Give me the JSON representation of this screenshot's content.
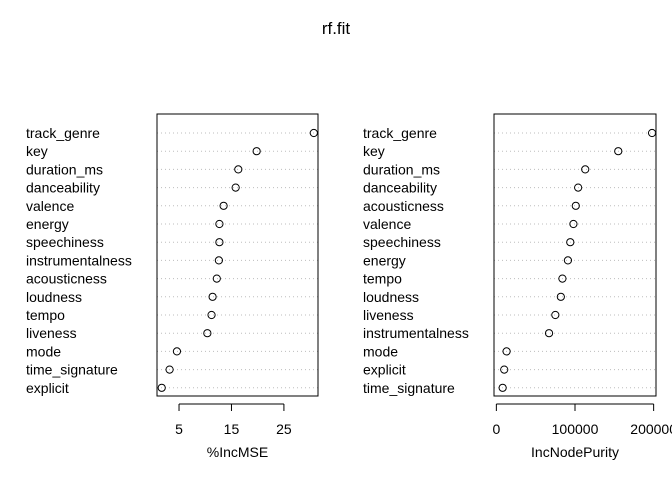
{
  "title": "rf.fit",
  "chart_data": [
    {
      "type": "scatter",
      "xlabel": "%IncMSE",
      "xlim": [
        0.8,
        31.5
      ],
      "xticks": [
        5,
        15,
        25
      ],
      "grid": "dotted horizontal guides",
      "categories": [
        "track_genre",
        "key",
        "duration_ms",
        "danceability",
        "valence",
        "energy",
        "speechiness",
        "instrumentalness",
        "acousticness",
        "loudness",
        "tempo",
        "liveness",
        "mode",
        "time_signature",
        "explicit"
      ],
      "values": [
        30.7,
        19.8,
        16.3,
        15.8,
        13.5,
        12.7,
        12.7,
        12.6,
        12.2,
        11.4,
        11.2,
        10.4,
        4.6,
        3.2,
        1.7
      ]
    },
    {
      "type": "scatter",
      "xlabel": "IncNodePurity",
      "xlim": [
        -3000,
        203000
      ],
      "xticks": [
        0,
        100000,
        200000
      ],
      "grid": "dotted horizontal guides",
      "categories": [
        "track_genre",
        "key",
        "duration_ms",
        "danceability",
        "acousticness",
        "valence",
        "speechiness",
        "energy",
        "tempo",
        "loudness",
        "liveness",
        "instrumentalness",
        "mode",
        "explicit",
        "time_signature"
      ],
      "values": [
        198000,
        155000,
        113000,
        104000,
        101000,
        98000,
        94000,
        91000,
        84000,
        82000,
        75000,
        67000,
        13000,
        10000,
        8000
      ]
    }
  ]
}
